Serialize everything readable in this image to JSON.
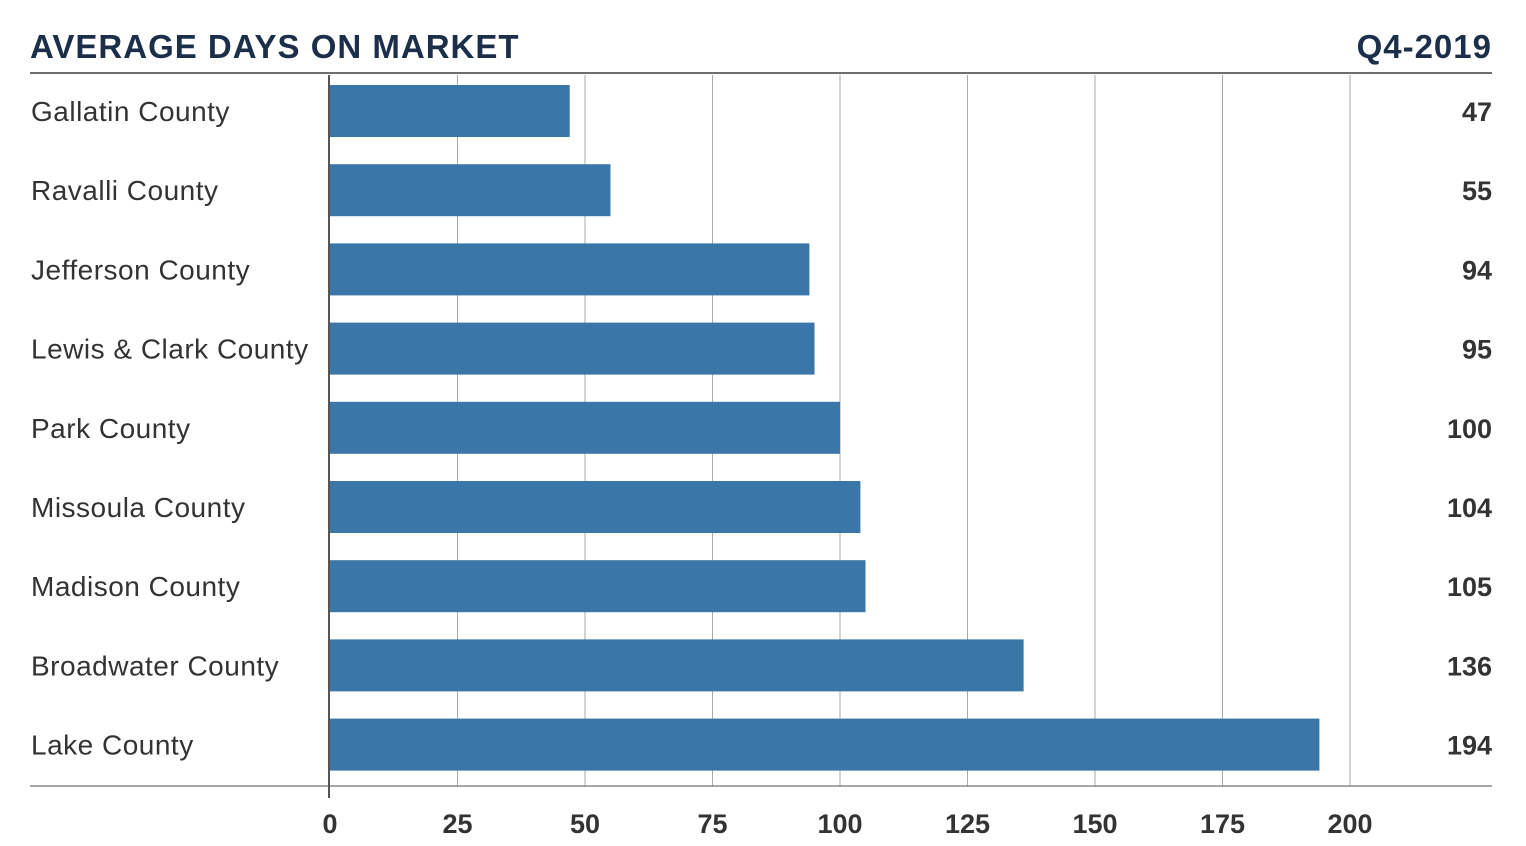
{
  "header": {
    "title": "AVERAGE DAYS ON MARKET",
    "period": "Q4-2019"
  },
  "chart_data": {
    "type": "bar",
    "orientation": "horizontal",
    "title": "AVERAGE DAYS ON MARKET",
    "subtitle": "Q4-2019",
    "categories": [
      "Gallatin County",
      "Ravalli County",
      "Jefferson County",
      "Lewis & Clark County",
      "Park County",
      "Missoula County",
      "Madison County",
      "Broadwater County",
      "Lake County"
    ],
    "values": [
      47,
      55,
      94,
      95,
      100,
      104,
      105,
      136,
      194
    ],
    "value_labels": [
      "47",
      "55",
      "94",
      "95",
      "100",
      "104",
      "105",
      "136",
      "194"
    ],
    "xlim": [
      0,
      200
    ],
    "ticks": [
      "0",
      "25",
      "50",
      "75",
      "100",
      "125",
      "150",
      "175",
      "200"
    ],
    "xlabel": "",
    "ylabel": "",
    "grid": true,
    "legend": "none",
    "bar_color": "#3a76a8",
    "title_color": "#1b2f4a"
  }
}
